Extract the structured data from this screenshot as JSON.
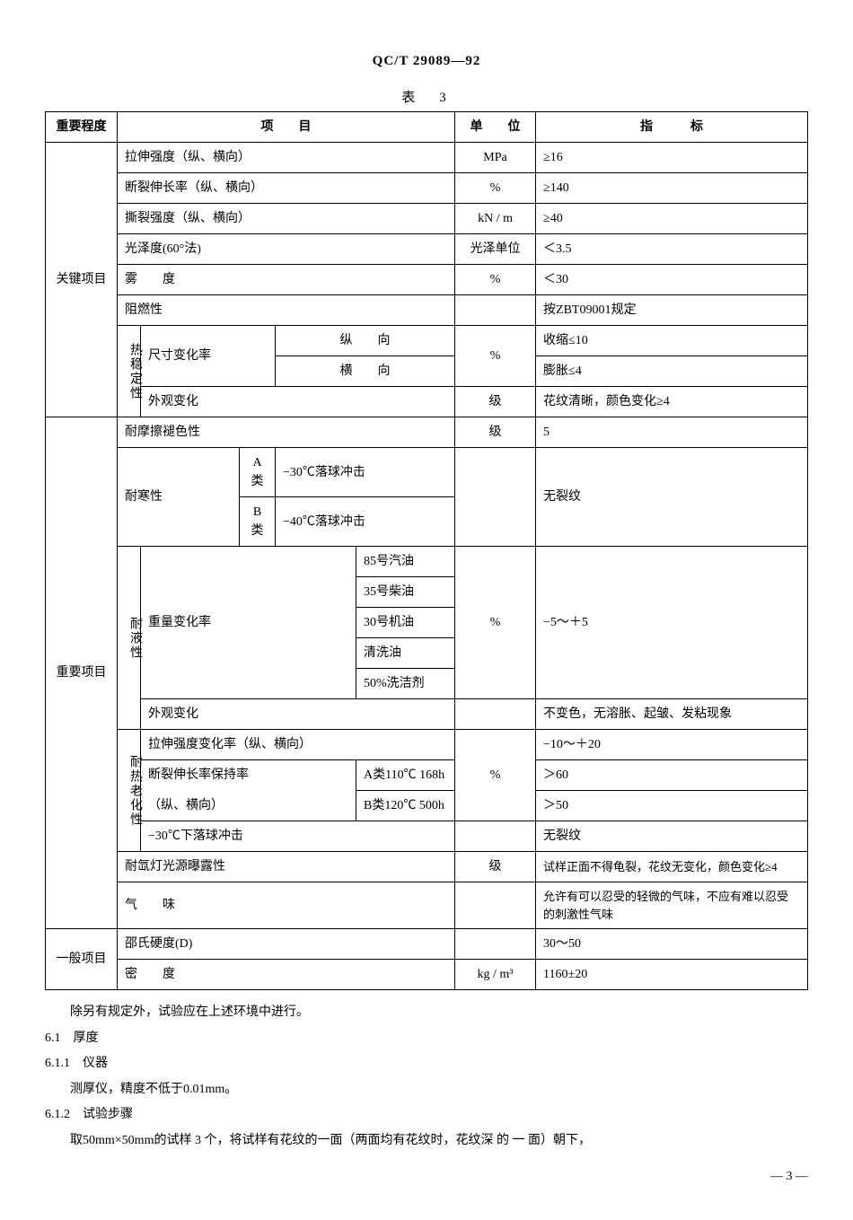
{
  "doc_code": "QC/T 29089—92",
  "table_caption": "表　3",
  "headers": {
    "importance": "重要程度",
    "item": "项　　目",
    "unit": "单　　位",
    "spec": "指　　　标"
  },
  "groups": {
    "key": "关键项目",
    "important": "重要项目",
    "general": "一般项目"
  },
  "subheads": {
    "thermal_stability": "热稳定性",
    "liquid_resist": "耐液性",
    "heat_aging": "耐热老化性"
  },
  "rows": {
    "tensile": {
      "item": "拉伸强度（纵、横向）",
      "unit": "MPa",
      "spec": "≥16"
    },
    "elong": {
      "item": "断裂伸长率（纵、横向）",
      "unit": "%",
      "spec": "≥140"
    },
    "tear": {
      "item": "撕裂强度（纵、横向）",
      "unit": "kN / m",
      "spec": "≥40"
    },
    "gloss": {
      "item": "光泽度(60°法)",
      "unit": "光泽单位",
      "spec": "＜3.5"
    },
    "haze": {
      "item": "雾　　度",
      "unit": "%",
      "spec": "＜30"
    },
    "flame": {
      "item": "阻燃性",
      "unit": "",
      "spec": "按ZBT09001规定"
    },
    "dim_change_label": "尺寸变化率",
    "dim_long": {
      "item": "纵　　向",
      "unit": "%",
      "spec": "收缩≤10"
    },
    "dim_trans": {
      "item": "横　　向",
      "spec": "膨胀≤4"
    },
    "appearance1": {
      "item": "外观变化",
      "unit": "级",
      "spec": "花纹清晰，颜色变化≥4"
    },
    "rub": {
      "item": "耐摩擦褪色性",
      "unit": "级",
      "spec": "5"
    },
    "cold_label": "耐寒性",
    "cold_a": {
      "cls": "A 类",
      "item": "−30℃落球冲击",
      "unit": "",
      "spec": "无裂纹"
    },
    "cold_b": {
      "cls": "B 类",
      "item": "−40℃落球冲击"
    },
    "mass_change_label": "重量变化率",
    "liq1": "85号汽油",
    "liq2": "35号柴油",
    "liq3": "30号机油",
    "liq4": "清洗油",
    "liq5": "50%洗洁剂",
    "liq_unit": "%",
    "liq_spec": "−5～＋5",
    "appearance2": {
      "item": "外观变化",
      "unit": "",
      "spec": "不变色，无溶胀、起皱、发粘现象"
    },
    "ha_tensile": {
      "item": "拉伸强度变化率（纵、横向）",
      "spec": "−10～＋20"
    },
    "ha_elong_label": "断裂伸长率保持率",
    "ha_elong_sub": "（纵、横向）",
    "ha_a": {
      "item": "A类110℃ 168h",
      "spec": "＞60"
    },
    "ha_b": {
      "item": "B类120℃ 500h",
      "spec": "＞50"
    },
    "ha_unit": "%",
    "ha_impact": {
      "item": "−30℃下落球冲击",
      "unit": "",
      "spec": "无裂纹"
    },
    "xenon": {
      "item": "耐氙灯光源曝露性",
      "unit": "级",
      "spec": "试样正面不得龟裂，花纹无变化，颜色变化≥4"
    },
    "odor": {
      "item": "气　　味",
      "unit": "",
      "spec": "允许有可以忍受的轻微的气味，不应有难以忍受的刺激性气味"
    },
    "shore": {
      "item": "邵氏硬度(D)",
      "unit": "",
      "spec": "30～50"
    },
    "density": {
      "item": "密　　度",
      "unit": "kg / m³",
      "spec": "1160±20"
    }
  },
  "body": {
    "p0": "除另有规定外，试验应在上述环境中进行。",
    "s61": "6.1　厚度",
    "s611": "6.1.1　仪器",
    "p611": "测厚仪，精度不低于0.01mm。",
    "s612": "6.1.2　试验步骤",
    "p612": "取50mm×50mm的试样 3 个，将试样有花纹的一面（两面均有花纹时，花纹深 的 一 面）朝下，"
  },
  "page": "— 3 —"
}
